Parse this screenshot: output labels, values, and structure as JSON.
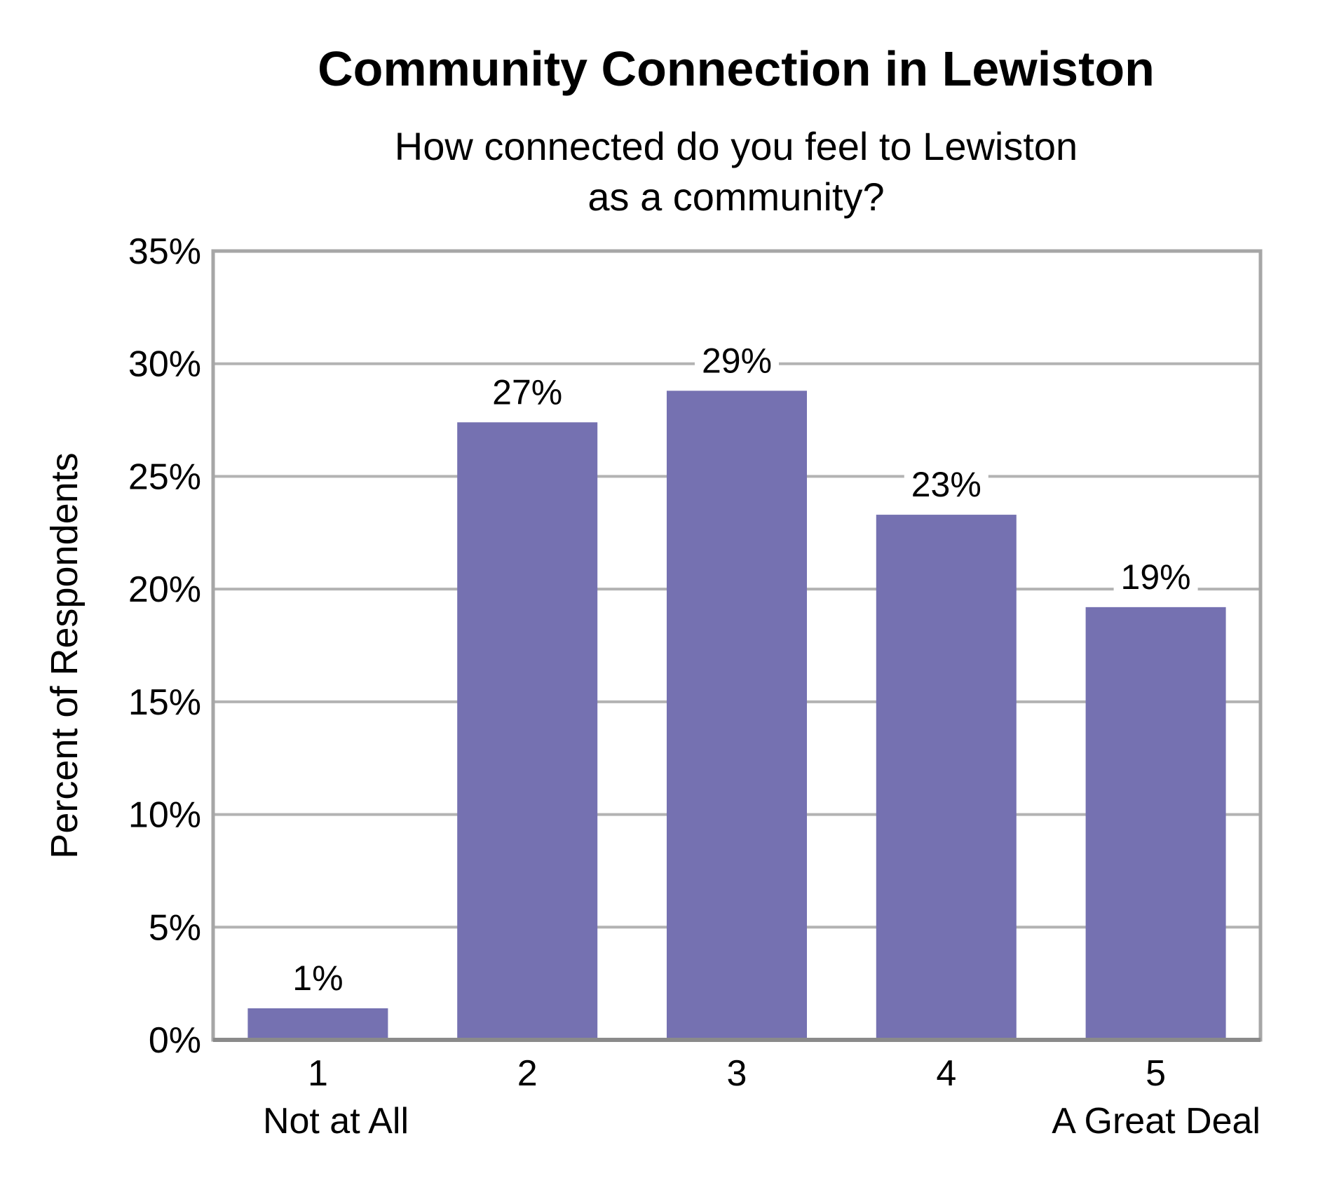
{
  "chart_data": {
    "type": "bar",
    "title": "Community Connection in Lewiston",
    "subtitle_lines": [
      "How connected do you feel to Lewiston",
      "as a community?"
    ],
    "ylabel": "Percent of Respondents",
    "categories": [
      "1",
      "2",
      "3",
      "4",
      "5"
    ],
    "category_sublabels": [
      "Not at All",
      "",
      "",
      "",
      "A Great Deal"
    ],
    "values": [
      1.4,
      27.4,
      28.8,
      23.3,
      19.2
    ],
    "data_labels": [
      "1%",
      "27%",
      "29%",
      "23%",
      "19%"
    ],
    "ylim": [
      0,
      35
    ],
    "yticks": [
      0,
      5,
      10,
      15,
      20,
      25,
      30,
      35
    ],
    "ytick_labels": [
      "0%",
      "5%",
      "10%",
      "15%",
      "20%",
      "25%",
      "30%",
      "35%"
    ],
    "grid": true,
    "bar_color": "#7571b1",
    "grid_color": "#b3b3b3",
    "frame_color": "#a6a6a6"
  }
}
